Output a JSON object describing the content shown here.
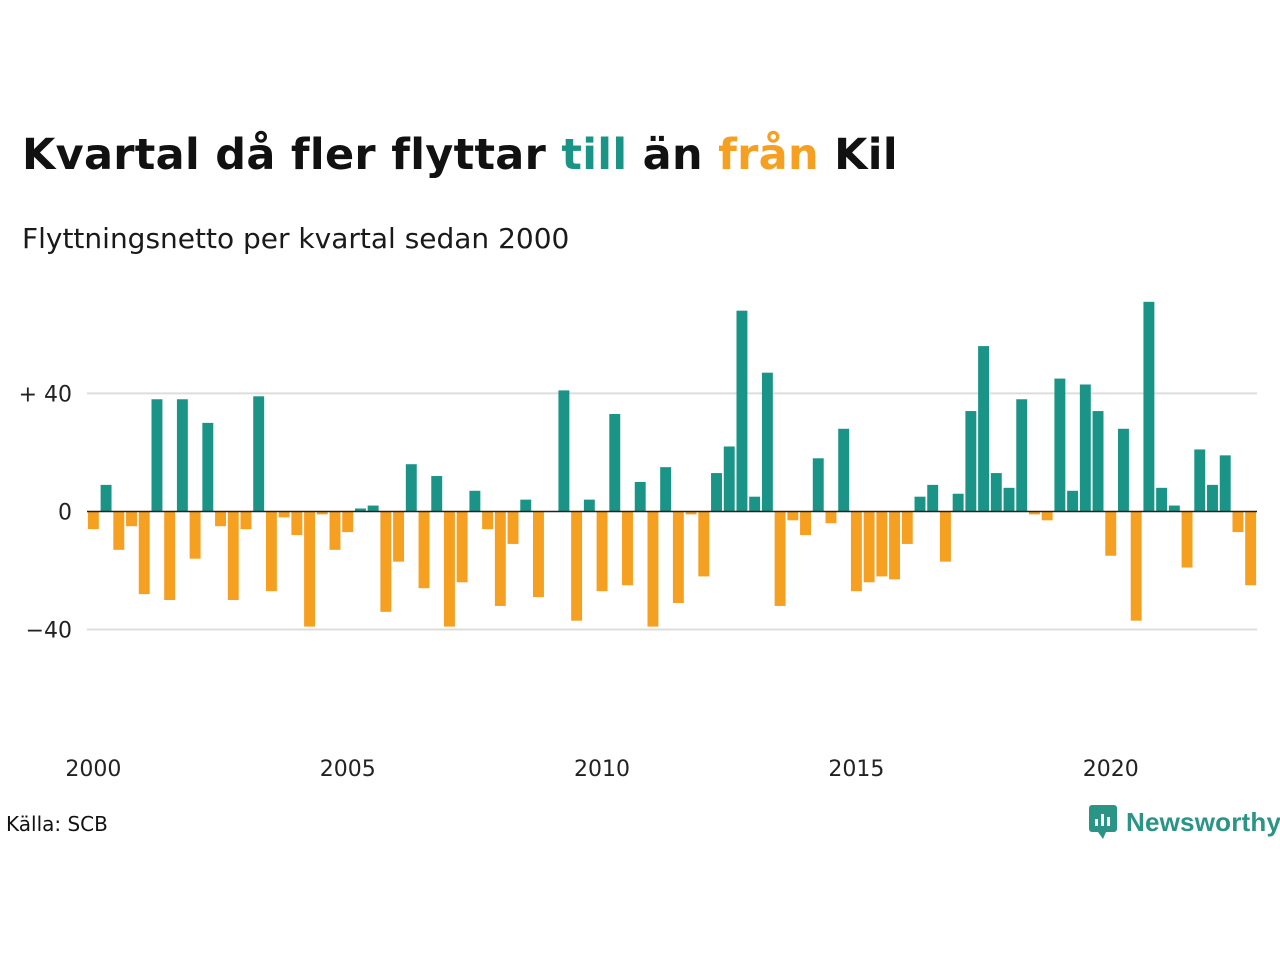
{
  "title": {
    "part1": "Kvartal då fler flyttar ",
    "till": "till",
    "part2": " än ",
    "fran": "från",
    "part3": " Kil"
  },
  "subtitle": "Flyttningsnetto per kvartal sedan 2000",
  "source": "Källa: SCB",
  "brand": "Newsworthy",
  "colors": {
    "positive": "#1a9486",
    "negative": "#f5a020",
    "grid": "#dddddd",
    "brand": "#2a9486"
  },
  "chart_data": {
    "type": "bar",
    "x_start": "2000 Q1",
    "x_ticks": [
      "2000",
      "2005",
      "2010",
      "2015",
      "2020"
    ],
    "y_ticks": [
      {
        "value": 40,
        "label": "+ 40"
      },
      {
        "value": 0,
        "label": "0"
      },
      {
        "value": -40,
        "label": "−40"
      }
    ],
    "ylim": [
      -73,
      75
    ],
    "values": [
      -6,
      9,
      -13,
      -5,
      -28,
      38,
      -30,
      38,
      -16,
      30,
      -5,
      -30,
      -6,
      39,
      -27,
      -2,
      -8,
      -39,
      -1,
      -13,
      -7,
      1,
      2,
      -34,
      -17,
      16,
      -26,
      12,
      -39,
      -24,
      7,
      -6,
      -32,
      -11,
      4,
      -29,
      0,
      41,
      -37,
      4,
      -27,
      33,
      -25,
      10,
      -39,
      15,
      -31,
      -1,
      -22,
      13,
      22,
      68,
      5,
      47,
      -32,
      -3,
      -8,
      18,
      -4,
      28,
      -27,
      -24,
      -22,
      -23,
      -11,
      5,
      9,
      -17,
      6,
      34,
      56,
      13,
      8,
      38,
      -1,
      -3,
      45,
      7,
      43,
      34,
      -15,
      28,
      -37,
      71,
      8,
      2,
      -19,
      21,
      9,
      19,
      -7,
      -25
    ]
  }
}
